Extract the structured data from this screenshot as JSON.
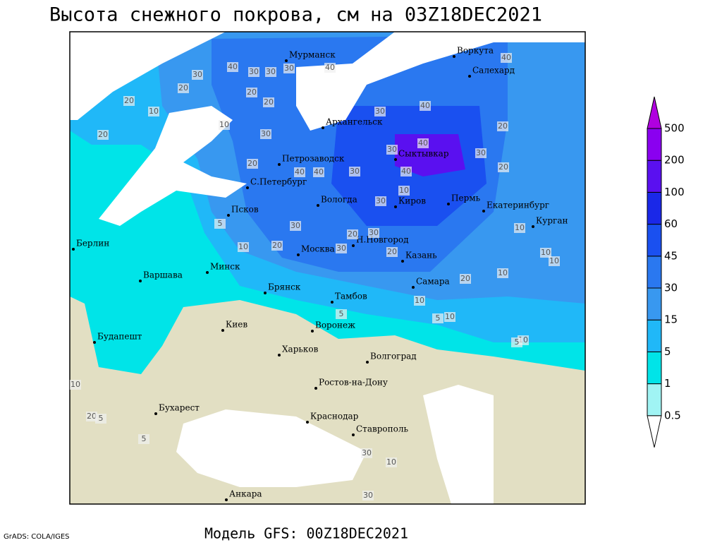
{
  "header": {
    "title": "Высота снежного покрова, см на 03Z18DEC2021"
  },
  "footer": {
    "model": "Модель GFS: 00Z18DEC2021",
    "credit": "GrADS: COLA/IGES"
  },
  "cities": [
    "Мурманск",
    "Воркута",
    "Салехард",
    "Архангельск",
    "Петрозаводск",
    "Сыктывкар",
    "С.Петербург",
    "Вологда",
    "Киров",
    "Пермь",
    "Екатеринбург",
    "Курган",
    "Псков",
    "Н.Новгород",
    "Москва",
    "Казань",
    "Берлин",
    "Варшава",
    "Минск",
    "Брянск",
    "Тамбов",
    "Самара",
    "Киев",
    "Воронеж",
    "Харьков",
    "Волгоград",
    "Будапешт",
    "Ростов-на-Дону",
    "Бухарест",
    "Краснодар",
    "Ставрополь",
    "Анкара"
  ],
  "contour_labels": [
    40,
    30,
    30,
    30,
    40,
    20,
    20,
    20,
    10,
    20,
    20,
    30,
    10,
    30,
    20,
    40,
    40,
    30,
    40,
    30,
    10,
    30,
    40,
    20,
    40,
    30,
    40,
    20,
    30,
    30,
    30,
    5,
    20,
    20,
    30,
    10,
    10,
    10,
    10,
    20,
    20,
    10,
    10,
    5,
    10,
    5,
    10,
    5,
    20,
    5,
    5,
    10,
    30,
    10,
    30
  ],
  "legend": {
    "levels": [
      0.5,
      1,
      5,
      15,
      30,
      45,
      60,
      100,
      200,
      500
    ],
    "colors": [
      "#ffffff",
      "#a0f4f4",
      "#00e4e8",
      "#20b8f8",
      "#3898f0",
      "#2a78f0",
      "#1a50f0",
      "#1a28e8",
      "#5a10f0",
      "#8a00f0",
      "#b000e0"
    ]
  }
}
